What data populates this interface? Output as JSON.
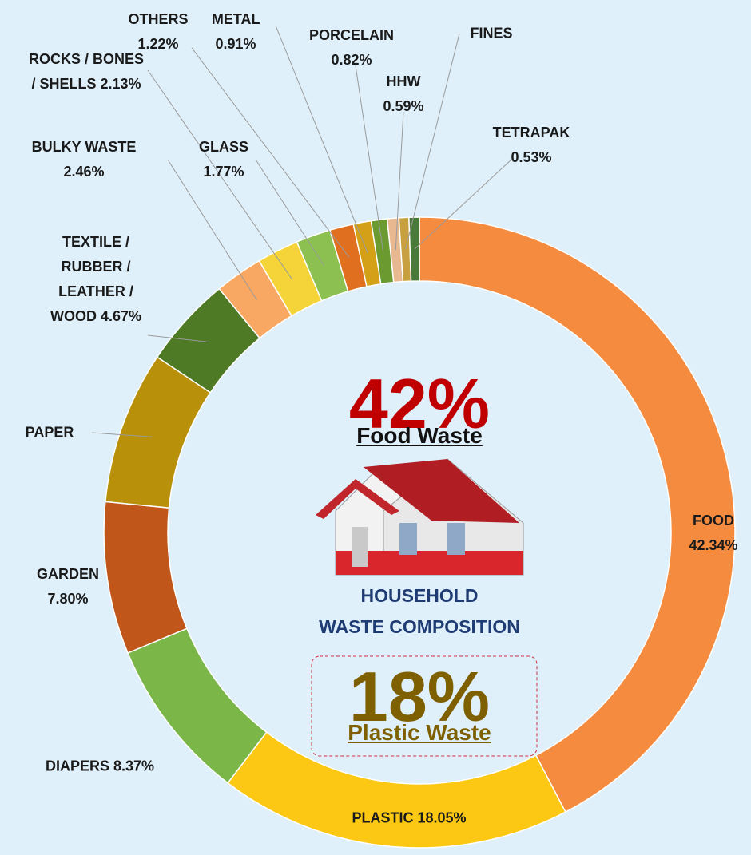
{
  "chart_data": {
    "type": "donut",
    "title_lines": [
      "HOUSEHOLD",
      "WASTE COMPOSITION"
    ],
    "annotations": [
      "42%",
      "Food Waste",
      "18%",
      "Plastic Waste"
    ],
    "categories": [
      "FOOD",
      "PLASTIC",
      "DIAPERS",
      "GARDEN",
      "PAPER",
      "TEXTILE / RUBBER / LEATHER / WOOD",
      "BULKY WASTE",
      "ROCKS / BONES / SHELLS",
      "GLASS",
      "OTHERS",
      "METAL",
      "PORCELAIN",
      "HHW",
      "FINES",
      "TETRAPAK"
    ],
    "values": [
      42.34,
      18.05,
      8.37,
      7.8,
      7.83,
      4.67,
      2.46,
      2.13,
      1.77,
      1.22,
      0.91,
      0.82,
      0.59,
      0.51,
      0.53
    ],
    "value_labels": [
      "42.34%",
      "18.05%",
      "8.37%",
      "7.80%",
      null,
      "4.67%",
      "2.46%",
      "2.13%",
      "1.77%",
      "1.22%",
      "0.91%",
      "0.82%",
      "0.59%",
      null,
      "0.53%"
    ],
    "colors": [
      "#f58b3f",
      "#fcc813",
      "#7ab648",
      "#c0561a",
      "#b8900a",
      "#4e7a25",
      "#f8a862",
      "#f5d43a",
      "#8cc152",
      "#e07020",
      "#d4a017",
      "#6b9a30",
      "#e8b890",
      "#c8a040",
      "#4a7a3a"
    ]
  }
}
